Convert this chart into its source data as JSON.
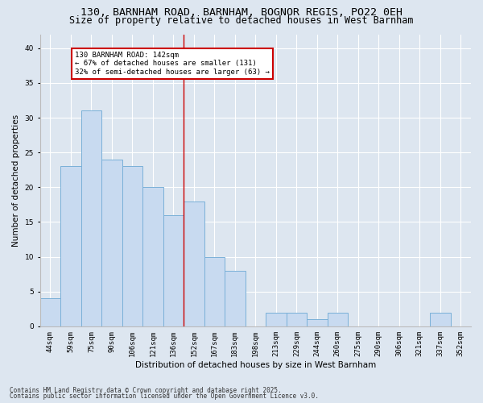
{
  "title_line1": "130, BARNHAM ROAD, BARNHAM, BOGNOR REGIS, PO22 0EH",
  "title_line2": "Size of property relative to detached houses in West Barnham",
  "xlabel": "Distribution of detached houses by size in West Barnham",
  "ylabel": "Number of detached properties",
  "categories": [
    "44sqm",
    "59sqm",
    "75sqm",
    "90sqm",
    "106sqm",
    "121sqm",
    "136sqm",
    "152sqm",
    "167sqm",
    "183sqm",
    "198sqm",
    "213sqm",
    "229sqm",
    "244sqm",
    "260sqm",
    "275sqm",
    "290sqm",
    "306sqm",
    "321sqm",
    "337sqm",
    "352sqm"
  ],
  "values": [
    4,
    23,
    31,
    24,
    23,
    20,
    16,
    18,
    10,
    8,
    0,
    2,
    2,
    1,
    2,
    0,
    0,
    0,
    0,
    2,
    0
  ],
  "bar_color": "#c8daf0",
  "bar_edge_color": "#7ab0d8",
  "vline_x_index": 6.5,
  "vline_color": "#cc0000",
  "annotation_text": "130 BARNHAM ROAD: 142sqm\n← 67% of detached houses are smaller (131)\n32% of semi-detached houses are larger (63) →",
  "annotation_box_facecolor": "#ffffff",
  "annotation_box_edgecolor": "#cc0000",
  "ylim": [
    0,
    42
  ],
  "yticks": [
    0,
    5,
    10,
    15,
    20,
    25,
    30,
    35,
    40
  ],
  "background_color": "#dde6f0",
  "plot_background_color": "#dde6f0",
  "footer_line1": "Contains HM Land Registry data © Crown copyright and database right 2025.",
  "footer_line2": "Contains public sector information licensed under the Open Government Licence v3.0.",
  "title_fontsize": 9.5,
  "subtitle_fontsize": 8.5,
  "axis_label_fontsize": 7.5,
  "tick_fontsize": 6.5,
  "annotation_fontsize": 6.5,
  "footer_fontsize": 5.5,
  "ylabel_fontsize": 7.5
}
